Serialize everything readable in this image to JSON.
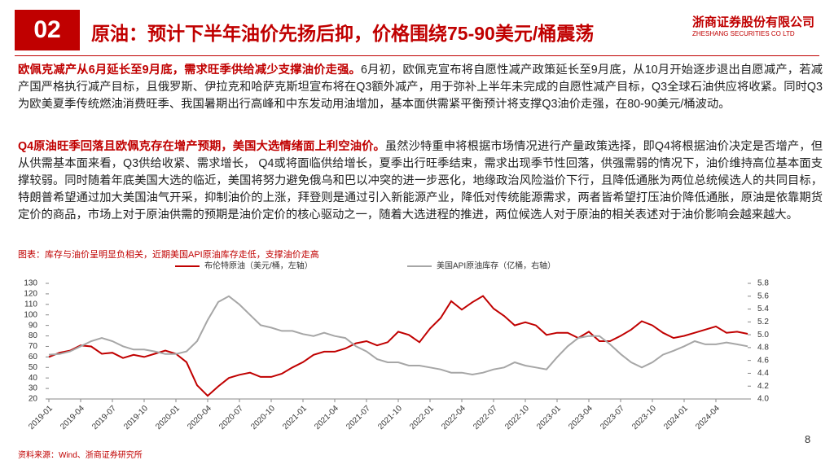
{
  "header": {
    "number": "02",
    "title": "原油：预计下半年油价先扬后抑，价格围绕75-90美元/桶震荡",
    "logo": "浙商证券股份有限公司",
    "logo_en": "ZHESHANG SECURITIES CO LTD"
  },
  "paragraphs": [
    {
      "lead": "欧佩克减产从6月延长至9月底，需求旺季供给减少支撑油价走强。",
      "body": "6月初，欧佩克宣布将自愿性减产政策延长至9月底，从10月开始逐步退出自愿减产，若减产国严格执行减产目标，且俄罗斯、伊拉克和哈萨克斯坦宣布将在Q3额外减产，用于弥补上半年未完成的自愿性减产目标，Q3全球石油供应将收紧。同时Q3为欧美夏季传统燃油消费旺季、我国暑期出行高峰和中东发动用油增加，基本面供需紧平衡预计将支撑Q3油价走强，在80-90美元/桶波动。"
    },
    {
      "lead": "Q4原油旺季回落且欧佩克存在增产预期，美国大选情绪面上利空油价。",
      "body": "虽然沙特重申将根据市场情况进行产量政策选择，即Q4将根据油价决定是否增产，但从供需基本面来看，Q3供给收紧、需求增长， Q4或将面临供给增长，夏季出行旺季结束，需求出现季节性回落，供强需弱的情况下，油价维持高位基本面支撑较弱。同时随着年底美国大选的临近，美国将努力避免俄乌和巴以冲突的进一步恶化，地缘政治风险溢价下行，且降低通胀为两位总统候选人的共同目标，特朗普希望通过加大美国油气开采，抑制油价的上涨，拜登则是通过引入新能源产业，降低对传统能源需求，两者皆希望打压油价降低通胀，原油是依靠期货定价的商品，市场上对于原油供需的预期是油价定价的核心驱动之一，随着大选进程的推进，两位候选人对于原油的相关表述对于油价影响会越来越大。"
    }
  ],
  "source": "资料来源：Wind、浙商证券研究所",
  "page": "8",
  "chart_data": {
    "type": "line",
    "title": "图表：库存与油价呈明显负相关，近期美国API原油库存走低，支撑油价走高",
    "categories": [
      "2019-01",
      null,
      null,
      "2019-04",
      null,
      null,
      "2019-07",
      null,
      null,
      "2019-10",
      null,
      null,
      "2020-01",
      null,
      null,
      "2020-04",
      null,
      null,
      "2020-07",
      null,
      null,
      "2020-10",
      null,
      null,
      "2021-01",
      null,
      null,
      "2021-04",
      null,
      null,
      "2021-07",
      null,
      null,
      "2021-10",
      null,
      null,
      "2022-01",
      null,
      null,
      "2022-04",
      null,
      null,
      "2022-07",
      null,
      null,
      "2022-10",
      null,
      null,
      "2023-01",
      null,
      null,
      "2023-04",
      null,
      null,
      "2023-07",
      null,
      null,
      "2023-10",
      null,
      null,
      "2024-01",
      null,
      null,
      "2024-04",
      null,
      null,
      null
    ],
    "series": [
      {
        "name": "布伦特原油（美元/桶，左轴）",
        "color": "#c00000",
        "values": [
          60,
          64,
          66,
          71,
          70,
          63,
          64,
          59,
          62,
          60,
          63,
          66,
          63,
          55,
          33,
          23,
          32,
          40,
          43,
          45,
          41,
          41,
          44,
          50,
          55,
          62,
          65,
          65,
          68,
          73,
          75,
          71,
          74,
          84,
          81,
          74,
          87,
          97,
          113,
          105,
          112,
          118,
          106,
          99,
          90,
          93,
          90,
          81,
          83,
          83,
          78,
          84,
          75,
          75,
          80,
          86,
          94,
          90,
          83,
          78,
          80,
          83,
          86,
          89,
          83,
          84,
          82
        ]
      },
      {
        "name": "美国API原油库存（亿桶，右轴）",
        "color": "#a6a6a6",
        "axis": "y2",
        "values": [
          4.69,
          4.7,
          4.74,
          4.82,
          4.9,
          4.95,
          4.9,
          4.82,
          4.77,
          4.77,
          4.74,
          4.7,
          4.7,
          4.74,
          4.9,
          5.23,
          5.51,
          5.6,
          5.47,
          5.31,
          5.15,
          5.11,
          5.06,
          5.06,
          5.01,
          4.98,
          5.03,
          4.98,
          4.95,
          4.82,
          4.74,
          4.62,
          4.57,
          4.57,
          4.52,
          4.52,
          4.49,
          4.46,
          4.41,
          4.41,
          4.38,
          4.41,
          4.46,
          4.49,
          4.57,
          4.52,
          4.49,
          4.46,
          4.65,
          4.82,
          4.95,
          4.98,
          4.98,
          4.85,
          4.7,
          4.57,
          4.49,
          4.57,
          4.69,
          4.75,
          4.82,
          4.9,
          4.85,
          4.85,
          4.88,
          4.85,
          4.82
        ]
      }
    ],
    "ylim": [
      20,
      130
    ],
    "yticks": [
      20,
      30,
      40,
      50,
      60,
      70,
      80,
      90,
      100,
      110,
      120,
      130
    ],
    "y2lim": [
      4,
      5.8
    ],
    "y2ticks": [
      {
        "value": 4,
        "label": "4.0"
      },
      4.2,
      4.4,
      4.6,
      4.8,
      {
        "value": 5,
        "label": "5.0"
      },
      5.2,
      5.4,
      5.6,
      5.8
    ],
    "grid": false
  }
}
